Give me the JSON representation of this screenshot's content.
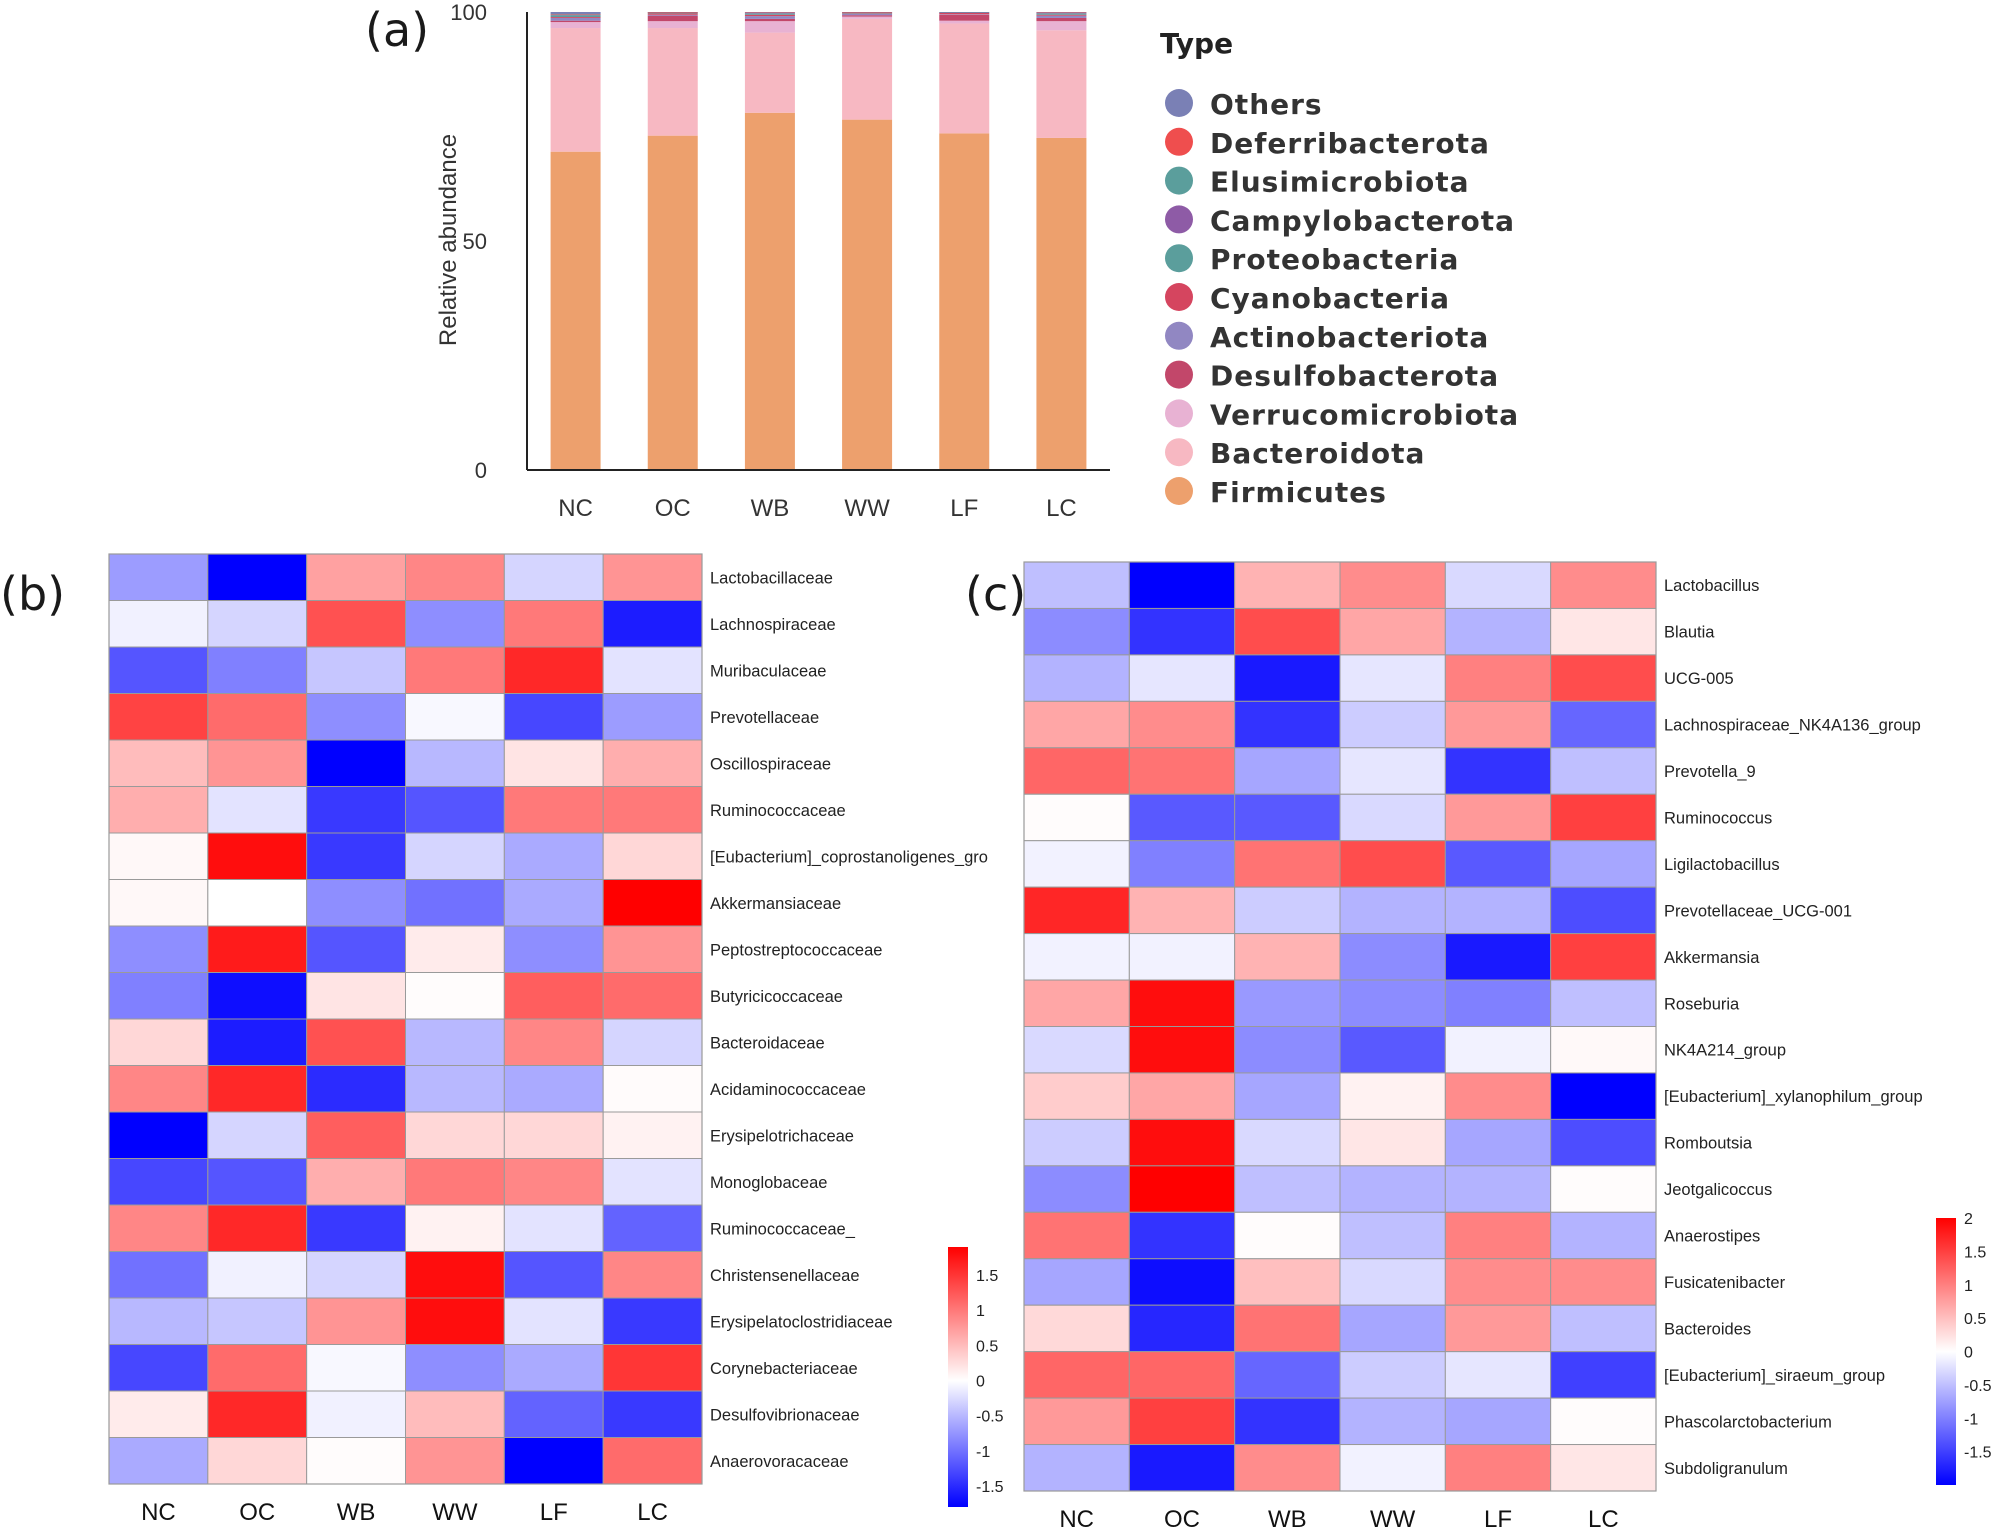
{
  "chart_data": [
    {
      "type": "bar",
      "panel_label": "(a)",
      "ylabel": "Relative abundance",
      "ylim": [
        0,
        100
      ],
      "yticks": [
        "0",
        "50",
        "100"
      ],
      "categories": [
        "NC",
        "OC",
        "WB",
        "WW",
        "LF",
        "LC"
      ],
      "stacked": true,
      "legend_title": "Type",
      "legend_position": "right",
      "series": [
        {
          "name": "Firmicutes",
          "color": "#EDA06D",
          "values": [
            69.5,
            73.0,
            78.0,
            76.5,
            73.5,
            72.5
          ]
        },
        {
          "name": "Bacteroidota",
          "color": "#F7B8C2",
          "values": [
            27.0,
            23.5,
            17.5,
            22.0,
            24.0,
            23.5
          ]
        },
        {
          "name": "Verrucomicrobiota",
          "color": "#E8B2D3",
          "values": [
            1.3,
            1.5,
            2.5,
            0.5,
            0.6,
            2.0
          ]
        },
        {
          "name": "Desulfobacterota",
          "color": "#C2476A",
          "values": [
            0.3,
            1.2,
            0.5,
            0.3,
            1.3,
            0.7
          ]
        },
        {
          "name": "Actinobacteriota",
          "color": "#9187C2",
          "values": [
            0.6,
            0.2,
            0.6,
            0.3,
            0.1,
            0.5
          ]
        },
        {
          "name": "Cyanobacteria",
          "color": "#D5455F",
          "values": [
            0.2,
            0.3,
            0.3,
            0.1,
            0.3,
            0.2
          ]
        },
        {
          "name": "Proteobacteria",
          "color": "#5B9E9C",
          "values": [
            0.4,
            0.1,
            0.2,
            0.1,
            0.1,
            0.2
          ]
        },
        {
          "name": "Campylobacterota",
          "color": "#8E5BA6",
          "values": [
            0.1,
            0.1,
            0.1,
            0.1,
            0.1,
            0.1
          ]
        },
        {
          "name": "Elusimicrobiota",
          "color": "#5B9E9C",
          "values": [
            0.1,
            0.05,
            0.1,
            0.05,
            0.0,
            0.1
          ]
        },
        {
          "name": "Deferribacterota",
          "color": "#EF4E4E",
          "values": [
            0.05,
            0.05,
            0.1,
            0.05,
            0.0,
            0.1
          ]
        },
        {
          "name": "Others",
          "color": "#7A80B5",
          "values": [
            0.45,
            0.0,
            0.1,
            0.0,
            0.0,
            0.1
          ]
        }
      ]
    },
    {
      "type": "heatmap",
      "panel_label": "(b)",
      "columns": [
        "NC",
        "OC",
        "WB",
        "WW",
        "LF",
        "LC"
      ],
      "rows": [
        "Lactobacillaceae",
        "Lachnospiraceae",
        "Muribaculaceae",
        "Prevotellaceae",
        "Oscillospiraceae",
        "Ruminococcaceae",
        "[Eubacterium]_coprostanoligenes_gro",
        "Akkermansiaceae",
        "Peptostreptococcaceae",
        "Butyricicoccaceae",
        "Bacteroidaceae",
        "Acidaminococcaceae",
        "Erysipelotrichaceae",
        "Monoglobaceae",
        "Ruminococcaceae_",
        "Christensenellaceae",
        "Erysipelatoclostridiaceae",
        "Corynebacteriaceae",
        "Desulfovibrionaceae",
        "Anaerovoracaceae"
      ],
      "values": [
        [
          -0.7,
          -1.8,
          0.7,
          0.9,
          -0.3,
          0.8
        ],
        [
          -0.1,
          -0.3,
          1.3,
          -0.8,
          1.0,
          -1.6
        ],
        [
          -1.2,
          -0.9,
          -0.4,
          1.0,
          1.6,
          -0.2
        ],
        [
          1.4,
          1.1,
          -0.8,
          -0.05,
          -1.3,
          -0.7
        ],
        [
          0.5,
          0.8,
          -1.9,
          -0.5,
          0.2,
          0.6
        ],
        [
          0.6,
          -0.2,
          -1.4,
          -1.2,
          1.0,
          1.0
        ],
        [
          0.05,
          1.8,
          -1.4,
          -0.3,
          -0.6,
          0.3
        ],
        [
          0.05,
          0.0,
          -0.8,
          -1.0,
          -0.6,
          1.9
        ],
        [
          -0.8,
          1.7,
          -1.2,
          0.15,
          -0.8,
          0.8
        ],
        [
          -0.9,
          -1.7,
          0.2,
          0.02,
          1.2,
          1.1
        ],
        [
          0.3,
          -1.6,
          1.3,
          -0.5,
          0.9,
          -0.3
        ],
        [
          0.9,
          1.6,
          -1.5,
          -0.5,
          -0.6,
          0.03
        ],
        [
          -1.9,
          -0.3,
          1.2,
          0.3,
          0.3,
          0.1
        ],
        [
          -1.3,
          -1.2,
          0.6,
          1.0,
          0.9,
          -0.2
        ],
        [
          0.9,
          1.6,
          -1.4,
          0.1,
          -0.2,
          -1.1
        ],
        [
          -1.0,
          -0.1,
          -0.3,
          1.8,
          -1.2,
          0.9
        ],
        [
          -0.5,
          -0.4,
          0.8,
          1.8,
          -0.2,
          -1.4
        ],
        [
          -1.3,
          1.1,
          -0.05,
          -0.8,
          -0.6,
          1.5
        ],
        [
          0.15,
          1.6,
          -0.1,
          0.5,
          -1.1,
          -1.4
        ],
        [
          -0.6,
          0.3,
          0.02,
          0.8,
          -1.8,
          1.1
        ]
      ],
      "colorbar_ticks": [
        "1.5",
        "1",
        "0.5",
        "0",
        "-0.5",
        "-1",
        "-1.5"
      ],
      "colorbar_range": [
        -1.8,
        1.9
      ],
      "colors": {
        "low": "#0000FF",
        "mid": "#FFFFFF",
        "high": "#FF0000"
      }
    },
    {
      "type": "heatmap",
      "panel_label": "(c)",
      "columns": [
        "NC",
        "OC",
        "WB",
        "WW",
        "LF",
        "LC"
      ],
      "rows": [
        "Lactobacillus",
        "Blautia",
        "UCG-005",
        "Lachnospiraceae_NK4A136_group",
        "Prevotella_9",
        "Ruminococcus",
        "Ligilactobacillus",
        "Prevotellaceae_UCG-001",
        "Akkermansia",
        "Roseburia",
        "NK4A214_group",
        "[Eubacterium]_xylanophilum_group",
        "Romboutsia",
        "Jeotgalicoccus",
        "Anaerostipes",
        "Fusicatenibacter",
        "Bacteroides",
        "[Eubacterium]_siraeum_group",
        "Phascolarctobacterium",
        "Subdoligranulum"
      ],
      "values": [
        [
          -0.5,
          -2.0,
          0.6,
          0.9,
          -0.3,
          0.9
        ],
        [
          -0.9,
          -1.6,
          1.4,
          0.7,
          -0.6,
          0.2
        ],
        [
          -0.6,
          -0.2,
          -1.8,
          -0.2,
          1.0,
          1.4
        ],
        [
          0.7,
          0.9,
          -1.6,
          -0.4,
          0.8,
          -1.2
        ],
        [
          1.2,
          1.1,
          -0.7,
          -0.2,
          -1.6,
          -0.5
        ],
        [
          0.02,
          -1.3,
          -1.3,
          -0.3,
          0.8,
          1.5
        ],
        [
          -0.1,
          -1.0,
          1.1,
          1.4,
          -1.3,
          -0.7
        ],
        [
          1.7,
          0.6,
          -0.4,
          -0.6,
          -0.6,
          -1.4
        ],
        [
          -0.1,
          -0.1,
          0.6,
          -0.9,
          -1.8,
          1.5
        ],
        [
          0.7,
          1.9,
          -0.8,
          -0.9,
          -1.0,
          -0.5
        ],
        [
          -0.3,
          1.9,
          -0.9,
          -1.3,
          -0.1,
          0.05
        ],
        [
          0.4,
          0.7,
          -0.7,
          0.1,
          0.9,
          -2.0
        ],
        [
          -0.4,
          1.9,
          -0.3,
          0.2,
          -0.7,
          -1.4
        ],
        [
          -0.9,
          2.0,
          -0.5,
          -0.6,
          -0.6,
          0.02
        ],
        [
          1.1,
          -1.6,
          0.02,
          -0.5,
          1.0,
          -0.6
        ],
        [
          -0.7,
          -1.9,
          0.5,
          -0.3,
          0.9,
          0.9
        ],
        [
          0.3,
          -1.7,
          1.1,
          -0.7,
          0.8,
          -0.5
        ],
        [
          1.2,
          1.2,
          -1.2,
          -0.4,
          -0.2,
          -1.5
        ],
        [
          0.8,
          1.5,
          -1.6,
          -0.6,
          -0.7,
          0.02
        ],
        [
          -0.6,
          -1.8,
          0.9,
          -0.1,
          1.0,
          0.2
        ]
      ],
      "colorbar_ticks": [
        "2",
        "1.5",
        "1",
        "0.5",
        "0",
        "-0.5",
        "-1",
        "-1.5"
      ],
      "colorbar_range": [
        -2.0,
        2.0
      ],
      "colors": {
        "low": "#0000FF",
        "mid": "#FFFFFF",
        "high": "#FF0000"
      }
    }
  ]
}
